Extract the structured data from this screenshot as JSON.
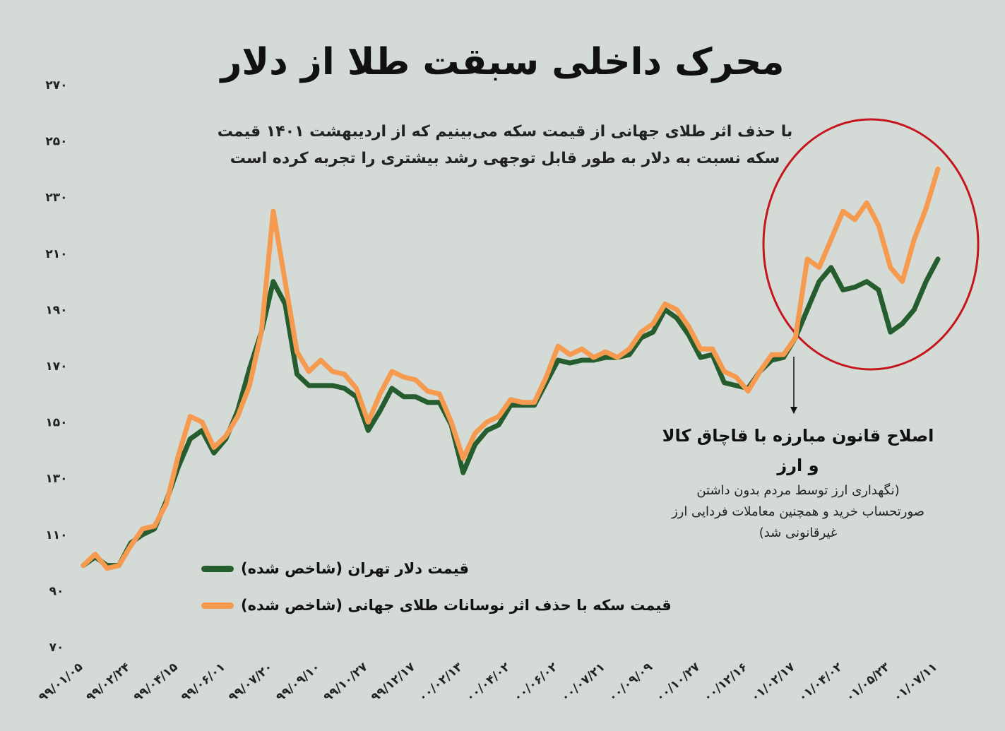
{
  "chart_data": {
    "type": "line",
    "title": "محرک داخلی سبقت طلا از دلار",
    "subtitle": "با حذف اثر طلای جهانی از قیمت سکه می‌بینیم که از اردیبهشت ۱۴۰۱ قیمت سکه نسبت به دلار به طور قابل توجهی رشد بیشتری را تجربه کرده است",
    "annotation": {
      "title": "اصلاح قانون مبارزه با قاچاق کالا و ارز",
      "text": "(نگهداری ارز توسط مردم بدون داشتن صورتحساب خرید و همچنین معاملات فردایی ارز غیرقانونی شد)"
    },
    "categories": [
      "۹۹/۰۱/۰۵",
      null,
      null,
      null,
      "۹۹/۰۲/۲۴",
      null,
      null,
      null,
      "۹۹/۰۴/۱۵",
      null,
      null,
      null,
      "۹۹/۰۶/۰۱",
      null,
      null,
      null,
      "۹۹/۰۷/۲۰",
      null,
      null,
      null,
      "۹۹/۰۹/۱۰",
      null,
      null,
      null,
      "۹۹/۱۰/۲۷",
      null,
      null,
      null,
      "۹۹/۱۲/۱۷",
      null,
      null,
      null,
      "۰۰/۰۲/۱۳",
      null,
      null,
      null,
      "۰۰/۰۴/۰۲",
      null,
      null,
      null,
      "۰۰/۰۶/۰۲",
      null,
      null,
      null,
      "۰۰/۰۷/۲۱",
      null,
      null,
      null,
      "۰۰/۰۹/۰۹",
      null,
      null,
      null,
      "۰۰/۱۰/۲۷",
      null,
      null,
      null,
      "۰۰/۱۲/۱۶",
      null,
      null,
      null,
      "۰۱/۰۲/۱۷",
      null,
      null,
      null,
      "۰۱/۰۴/۰۲",
      null,
      null,
      null,
      "۰۱/۰۵/۲۳",
      null,
      null,
      null,
      "۰۱/۰۷/۱۱"
    ],
    "series": [
      {
        "name": "قیمت دلار تهران (شاخص شده)",
        "color": "#265d2f",
        "values": [
          99,
          102,
          99,
          99,
          107,
          110,
          112,
          122,
          134,
          144,
          147,
          139,
          144,
          154,
          169,
          182,
          200,
          192,
          167,
          163,
          163,
          163,
          162,
          159,
          147,
          154,
          162,
          159,
          159,
          157,
          157,
          149,
          132,
          142,
          147,
          149,
          156,
          156,
          156,
          164,
          172,
          171,
          172,
          172,
          173,
          173,
          174,
          180,
          182,
          190,
          187,
          181,
          173,
          174,
          164,
          163,
          162,
          168,
          172,
          173,
          180,
          190,
          200,
          205,
          197,
          198,
          200,
          197,
          182,
          185,
          190,
          200,
          208
        ]
      },
      {
        "name": "قیمت سکه با حذف اثر نوسانات طلای جهانی (شاخص شده)",
        "color": "#f59a4e",
        "values": [
          99,
          103,
          98,
          99,
          106,
          112,
          113,
          121,
          138,
          152,
          150,
          141,
          145,
          152,
          163,
          182,
          225,
          200,
          175,
          168,
          172,
          168,
          167,
          162,
          150,
          160,
          168,
          166,
          165,
          161,
          160,
          150,
          137,
          146,
          150,
          152,
          158,
          157,
          157,
          166,
          177,
          174,
          176,
          173,
          175,
          173,
          176,
          182,
          185,
          192,
          190,
          184,
          176,
          176,
          168,
          166,
          161,
          168,
          174,
          174,
          180,
          208,
          205,
          215,
          225,
          222,
          228,
          220,
          205,
          200,
          215,
          226,
          240
        ]
      }
    ],
    "ylim": [
      70,
      270
    ],
    "yticks": [
      {
        "value": 70,
        "label": "۷۰"
      },
      {
        "value": 90,
        "label": "۹۰"
      },
      {
        "value": 110,
        "label": "۱۱۰"
      },
      {
        "value": 130,
        "label": "۱۳۰"
      },
      {
        "value": 150,
        "label": "۱۵۰"
      },
      {
        "value": 170,
        "label": "۱۷۰"
      },
      {
        "value": 190,
        "label": "۱۹۰"
      },
      {
        "value": 210,
        "label": "۲۱۰"
      },
      {
        "value": 230,
        "label": "۲۳۰"
      },
      {
        "value": 250,
        "label": "۲۵۰"
      },
      {
        "value": 270,
        "label": "۲۷۰"
      }
    ],
    "grid": false
  }
}
